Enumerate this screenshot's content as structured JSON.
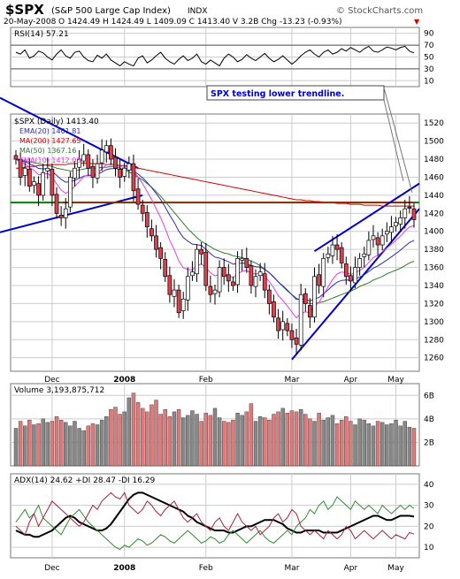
{
  "header": {
    "symbol": "$SPX",
    "name": "(S&P 500 Large Cap Index)",
    "exchange": "INDX",
    "watermark": "© StockCharts.com",
    "date": "20-May-2008",
    "quote": "O 1424.49  H 1424.49  L 1409.09  C 1413.40  V 3.2B  Chg -13.23 (-0.93%)",
    "chg_marker": "▼"
  },
  "colors": {
    "up": "#ffffff",
    "down": "#e0404c",
    "ema20": "#2b2bb0",
    "ma200": "#d40000",
    "ma50": "#2f7a2f",
    "ema10": "#e040e0",
    "trend": "#0000cc",
    "support": "#008000",
    "resist": "#cc0000",
    "grid": "#cccccc",
    "vol_up": "#888888",
    "vol_down": "#e07a7a"
  },
  "annotation": "SPX testing lower trendline.",
  "chart_data": [
    {
      "type": "line",
      "panel": "rsi",
      "title": "RSI(14) 57.21",
      "yticks": [
        10,
        30,
        50,
        70,
        90
      ],
      "ylim": [
        0,
        100
      ],
      "guide_levels": [
        30,
        70
      ],
      "series": [
        {
          "name": "RSI(14)",
          "values": [
            58,
            55,
            62,
            48,
            52,
            60,
            57,
            50,
            45,
            55,
            62,
            52,
            48,
            58,
            60,
            50,
            44,
            42,
            53,
            48,
            55,
            45,
            40,
            35,
            42,
            38,
            35,
            48,
            52,
            40,
            45,
            52,
            58,
            48,
            42,
            38,
            46,
            52,
            44,
            48,
            55,
            42,
            38,
            45,
            40,
            35,
            48,
            55,
            50,
            42,
            46,
            54,
            48,
            44,
            50,
            56,
            48,
            42,
            46,
            52,
            45,
            38,
            44,
            52,
            58,
            62,
            55,
            50,
            58,
            62,
            55,
            58,
            64,
            60,
            66,
            62,
            58,
            64,
            68,
            60,
            58,
            62,
            67,
            65,
            62,
            66,
            68,
            60,
            57
          ]
        }
      ]
    },
    {
      "type": "candlestick",
      "panel": "price",
      "title": "$SPX (Daily) 1413.40",
      "legend": [
        "EMA(20) 1401.81",
        "MA(200) 1427.65",
        "MA(50) 1367.16",
        "EMA(10) 1412.03"
      ],
      "yticks": [
        1260,
        1280,
        1300,
        1320,
        1340,
        1360,
        1380,
        1400,
        1420,
        1440,
        1460,
        1480,
        1500,
        1520
      ],
      "ylim": [
        1245,
        1530
      ],
      "xlabels": [
        "Dec",
        "2008",
        "Feb",
        "Mar",
        "Apr",
        "May"
      ],
      "close": [
        1480,
        1460,
        1470,
        1450,
        1455,
        1440,
        1465,
        1470,
        1440,
        1420,
        1415,
        1425,
        1460,
        1470,
        1480,
        1485,
        1470,
        1460,
        1475,
        1490,
        1495,
        1480,
        1470,
        1460,
        1470,
        1475,
        1445,
        1430,
        1420,
        1405,
        1395,
        1380,
        1370,
        1350,
        1330,
        1335,
        1310,
        1325,
        1350,
        1355,
        1380,
        1375,
        1340,
        1330,
        1335,
        1360,
        1350,
        1345,
        1340,
        1370,
        1370,
        1360,
        1340,
        1350,
        1355,
        1335,
        1320,
        1305,
        1290,
        1300,
        1290,
        1280,
        1275,
        1330,
        1320,
        1305,
        1350,
        1340,
        1370,
        1375,
        1385,
        1380,
        1365,
        1350,
        1345,
        1360,
        1370,
        1375,
        1390,
        1395,
        1385,
        1395,
        1400,
        1405,
        1410,
        1415,
        1425,
        1426,
        1413
      ],
      "ma200": [
        1470,
        1470,
        1471,
        1472,
        1472,
        1473,
        1473,
        1474,
        1474,
        1474,
        1474,
        1474,
        1475,
        1475,
        1475,
        1476,
        1475,
        1475,
        1475,
        1475,
        1474,
        1474,
        1474,
        1473,
        1473,
        1472,
        1471,
        1470,
        1469,
        1468,
        1467,
        1466,
        1465,
        1464,
        1463,
        1462,
        1461,
        1460,
        1459,
        1458,
        1457,
        1456,
        1455,
        1454,
        1453,
        1452,
        1451,
        1450,
        1449,
        1448,
        1447,
        1446,
        1445,
        1444,
        1443,
        1442,
        1441,
        1440,
        1439,
        1438,
        1437,
        1436,
        1435,
        1435,
        1434,
        1434,
        1433,
        1433,
        1432,
        1432,
        1432,
        1431,
        1431,
        1431,
        1430,
        1430,
        1430,
        1429,
        1429,
        1429,
        1429,
        1428,
        1428,
        1428,
        1428,
        1428,
        1428,
        1428,
        1428
      ],
      "ma50": [
        1480,
        1479,
        1478,
        1477,
        1476,
        1475,
        1474,
        1473,
        1472,
        1470,
        1469,
        1468,
        1467,
        1467,
        1468,
        1469,
        1470,
        1470,
        1470,
        1471,
        1471,
        1472,
        1472,
        1470,
        1468,
        1466,
        1463,
        1460,
        1457,
        1453,
        1449,
        1444,
        1439,
        1433,
        1427,
        1421,
        1415,
        1409,
        1403,
        1398,
        1393,
        1389,
        1386,
        1383,
        1380,
        1378,
        1376,
        1375,
        1373,
        1372,
        1371,
        1369,
        1367,
        1365,
        1362,
        1358,
        1354,
        1349,
        1344,
        1339,
        1334,
        1330,
        1326,
        1323,
        1321,
        1320,
        1320,
        1321,
        1322,
        1324,
        1326,
        1328,
        1330,
        1332,
        1334,
        1336,
        1339,
        1341,
        1343,
        1346,
        1348,
        1350,
        1353,
        1355,
        1357,
        1359,
        1362,
        1365,
        1367
      ]
    },
    {
      "type": "bar",
      "panel": "volume",
      "title": "Volume 3,193,875,712",
      "yticks": [
        "2B",
        "4B",
        "6B"
      ],
      "ylim": [
        0,
        7
      ],
      "values": [
        3.2,
        3.8,
        3.4,
        3.9,
        3.5,
        3.6,
        4.0,
        3.7,
        3.8,
        4.2,
        3.9,
        3.7,
        3.4,
        3.8,
        3.2,
        3.0,
        3.4,
        3.6,
        3.5,
        3.9,
        4.2,
        4.8,
        5.0,
        4.4,
        4.6,
        5.8,
        6.2,
        5.4,
        4.9,
        4.6,
        5.2,
        5.6,
        4.4,
        4.8,
        4.2,
        4.6,
        4.8,
        4.1,
        4.3,
        4.7,
        4.4,
        3.8,
        4.5,
        4.3,
        4.9,
        4.1,
        3.8,
        3.7,
        3.9,
        4.5,
        4.3,
        4.6,
        5.3,
        3.8,
        4.2,
        4.1,
        3.9,
        4.4,
        4.6,
        4.9,
        4.5,
        4.7,
        4.6,
        4.8,
        4.4,
        4.0,
        3.8,
        4.5,
        3.9,
        4.1,
        4.3,
        3.6,
        3.9,
        4.2,
        3.8,
        3.5,
        4.0,
        3.9,
        3.6,
        3.4,
        3.8,
        3.7,
        3.5,
        3.6,
        3.9,
        3.4,
        3.8,
        3.3,
        3.2
      ]
    },
    {
      "type": "line",
      "panel": "adx",
      "title": "ADX(14) 24.62 +DI 28.47 -DI 16.29",
      "yticks": [
        10,
        20,
        30,
        40
      ],
      "ylim": [
        5,
        45
      ],
      "series": [
        {
          "name": "ADX(14)",
          "values": [
            18,
            17,
            16,
            16,
            15,
            15,
            16,
            17,
            18,
            20,
            22,
            24,
            25,
            24,
            22,
            21,
            20,
            19,
            18,
            18,
            19,
            21,
            24,
            27,
            30,
            33,
            35,
            36,
            36,
            35,
            34,
            33,
            32,
            31,
            30,
            29,
            28,
            27,
            25,
            24,
            22,
            21,
            20,
            19,
            18,
            18,
            18,
            17,
            17,
            18,
            19,
            20,
            20,
            21,
            22,
            23,
            23,
            23,
            22,
            21,
            19,
            18,
            17,
            17,
            18,
            18,
            18,
            18,
            17,
            17,
            17,
            17,
            18,
            19,
            20,
            21,
            22,
            23,
            24,
            25,
            25,
            24,
            23,
            23,
            24,
            25,
            25,
            25,
            24.62
          ]
        },
        {
          "name": "+DI",
          "values": [
            22,
            25,
            28,
            24,
            26,
            30,
            24,
            22,
            20,
            18,
            16,
            20,
            24,
            26,
            28,
            25,
            22,
            20,
            18,
            16,
            14,
            12,
            10,
            9,
            11,
            10,
            12,
            14,
            13,
            11,
            12,
            14,
            16,
            15,
            13,
            12,
            14,
            16,
            18,
            16,
            14,
            12,
            13,
            15,
            14,
            12,
            13,
            16,
            18,
            16,
            14,
            12,
            14,
            16,
            18,
            15,
            13,
            12,
            14,
            16,
            18,
            16,
            20,
            22,
            24,
            28,
            26,
            30,
            32,
            28,
            30,
            34,
            32,
            30,
            28,
            32,
            30,
            28,
            30,
            28,
            26,
            30,
            28,
            26,
            28,
            30,
            28,
            30,
            28.47
          ]
        },
        {
          "name": "-DI",
          "values": [
            20,
            18,
            16,
            22,
            26,
            20,
            24,
            28,
            32,
            30,
            28,
            26,
            24,
            22,
            20,
            22,
            26,
            30,
            28,
            32,
            34,
            36,
            34,
            33,
            36,
            30,
            28,
            26,
            28,
            32,
            30,
            27,
            25,
            28,
            30,
            32,
            28,
            24,
            22,
            24,
            26,
            22,
            20,
            18,
            22,
            24,
            20,
            18,
            22,
            26,
            22,
            20,
            18,
            20,
            16,
            18,
            20,
            24,
            26,
            22,
            24,
            28,
            26,
            20,
            18,
            16,
            18,
            16,
            14,
            18,
            16,
            14,
            16,
            20,
            18,
            14,
            16,
            18,
            16,
            14,
            16,
            18,
            16,
            14,
            16,
            15,
            14,
            17,
            16.29
          ]
        }
      ]
    }
  ]
}
